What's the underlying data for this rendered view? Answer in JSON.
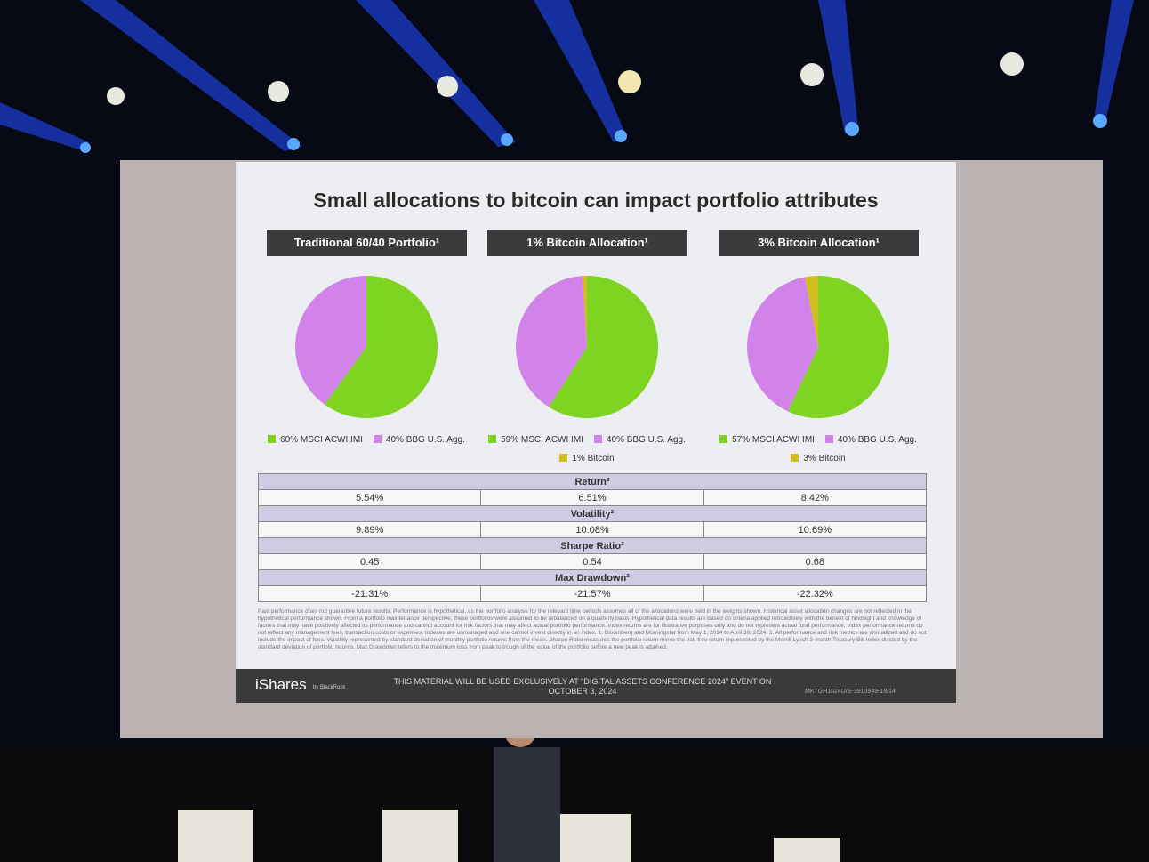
{
  "slide_title": "Small allocations to bitcoin can impact portfolio attributes",
  "chart_data": [
    {
      "type": "pie",
      "title": "Traditional 60/40 Portfolio¹",
      "categories": [
        "MSCI ACWI IMI",
        "BBG U.S. Agg."
      ],
      "values": [
        60,
        40
      ],
      "value_labels": [
        "60%",
        "40%"
      ],
      "colors": [
        "#7fd321",
        "#d283ea"
      ]
    },
    {
      "type": "pie",
      "title": "1% Bitcoin Allocation¹",
      "categories": [
        "MSCI ACWI IMI",
        "BBG U.S. Agg.",
        "Bitcoin"
      ],
      "values": [
        59,
        40,
        1
      ],
      "value_labels": [
        "59%",
        "40%",
        "1%"
      ],
      "colors": [
        "#7fd321",
        "#d283ea",
        "#d1bd1c"
      ]
    },
    {
      "type": "pie",
      "title": "3% Bitcoin Allocation¹",
      "categories": [
        "MSCI ACWI IMI",
        "BBG U.S. Agg.",
        "Bitcoin"
      ],
      "values": [
        57,
        40,
        3
      ],
      "value_labels": [
        "57%",
        "40%",
        "3%"
      ],
      "colors": [
        "#7fd321",
        "#d283ea",
        "#d1bd1c"
      ]
    }
  ],
  "table": {
    "rows": [
      {
        "metric": "Return²",
        "values": [
          "5.54%",
          "6.51%",
          "8.42%"
        ]
      },
      {
        "metric": "Volatility²",
        "values": [
          "9.89%",
          "10.08%",
          "10.69%"
        ]
      },
      {
        "metric": "Sharpe Ratio²",
        "values": [
          "0.45",
          "0.54",
          "0.68"
        ]
      },
      {
        "metric": "Max Drawdown²",
        "values": [
          "-21.31%",
          "-21.57%",
          "-22.32%"
        ]
      }
    ]
  },
  "footnote": "Past performance does not guarantee future results. Performance is hypothetical, as the portfolio analysis for the relevant time periods assumes all of the allocations were held in the weights shown. Historical asset allocation changes are not reflected in the hypothetical performance shown. From a portfolio maintenance perspective, these portfolios were assumed to be rebalanced on a quarterly basis. Hypothetical data results are based on criteria applied retroactively with the benefit of hindsight and knowledge of factors that may have positively affected its performance and cannot account for risk factors that may affect actual portfolio performance. Index returns are for illustrative purposes only and do not represent actual fund performance. Index performance returns do not reflect any management fees, transaction costs or expenses. Indexes are unmanaged and one cannot invest directly in an index. 1. Bloomberg and Morningstar from May 1, 2014 to April 30, 2024. 2. All performance and risk metrics are annualized and do not include the impact of fees. Volatility represented by standard deviation of monthly portfolio returns from the mean. Sharpe Ratio measures the portfolio return minus the risk-free return represented by the Merrill Lynch 3-month Treasury Bill Index divided by the standard deviation of portfolio returns. Max Drawdown refers to the maximum loss from peak to trough of the value of the portfolio before a new peak is attained.",
  "footer": {
    "brand": "iShares",
    "brand_sub": "by BlackRock",
    "notice": "THIS MATERIAL WILL BE USED EXCLUSIVELY AT \"DIGITAL ASSETS CONFERENCE 2024\" EVENT ON OCTOBER 3, 2024",
    "code": "MKTGH1024U/S-3910949-18/14"
  }
}
